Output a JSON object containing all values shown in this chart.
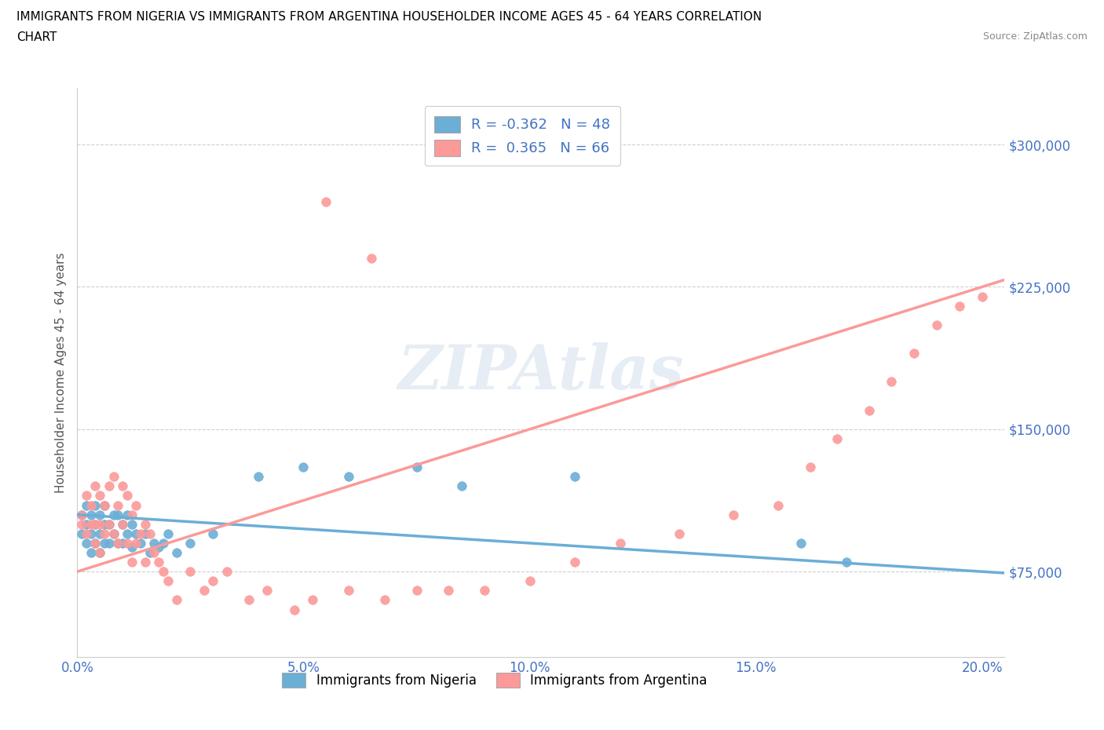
{
  "title_line1": "IMMIGRANTS FROM NIGERIA VS IMMIGRANTS FROM ARGENTINA HOUSEHOLDER INCOME AGES 45 - 64 YEARS CORRELATION",
  "title_line2": "CHART",
  "source": "Source: ZipAtlas.com",
  "ylabel": "Householder Income Ages 45 - 64 years",
  "xlim": [
    0.0,
    0.205
  ],
  "ylim": [
    30000,
    330000
  ],
  "yticks": [
    75000,
    150000,
    225000,
    300000
  ],
  "ytick_labels": [
    "$75,000",
    "$150,000",
    "$225,000",
    "$300,000"
  ],
  "xticks": [
    0.0,
    0.05,
    0.1,
    0.15,
    0.2
  ],
  "xtick_labels": [
    "0.0%",
    "5.0%",
    "10.0%",
    "15.0%",
    "20.0%"
  ],
  "nigeria_color": "#6baed6",
  "argentina_color": "#fb9a99",
  "nigeria_R": -0.362,
  "nigeria_N": 48,
  "argentina_R": 0.365,
  "argentina_N": 66,
  "nigeria_scatter_x": [
    0.001,
    0.001,
    0.002,
    0.002,
    0.002,
    0.003,
    0.003,
    0.003,
    0.004,
    0.004,
    0.004,
    0.005,
    0.005,
    0.005,
    0.006,
    0.006,
    0.006,
    0.007,
    0.007,
    0.008,
    0.008,
    0.009,
    0.009,
    0.01,
    0.01,
    0.011,
    0.011,
    0.012,
    0.012,
    0.013,
    0.014,
    0.015,
    0.016,
    0.017,
    0.018,
    0.019,
    0.02,
    0.022,
    0.025,
    0.03,
    0.04,
    0.05,
    0.06,
    0.075,
    0.085,
    0.11,
    0.16,
    0.17
  ],
  "nigeria_scatter_y": [
    105000,
    95000,
    110000,
    100000,
    90000,
    105000,
    95000,
    85000,
    110000,
    100000,
    90000,
    105000,
    95000,
    85000,
    110000,
    100000,
    90000,
    100000,
    90000,
    105000,
    95000,
    105000,
    90000,
    100000,
    90000,
    105000,
    95000,
    100000,
    88000,
    95000,
    90000,
    95000,
    85000,
    90000,
    88000,
    90000,
    95000,
    85000,
    90000,
    95000,
    125000,
    130000,
    125000,
    130000,
    120000,
    125000,
    90000,
    80000
  ],
  "argentina_scatter_x": [
    0.001,
    0.001,
    0.002,
    0.002,
    0.003,
    0.003,
    0.004,
    0.004,
    0.004,
    0.005,
    0.005,
    0.005,
    0.006,
    0.006,
    0.007,
    0.007,
    0.008,
    0.008,
    0.009,
    0.009,
    0.01,
    0.01,
    0.011,
    0.011,
    0.012,
    0.012,
    0.013,
    0.013,
    0.014,
    0.015,
    0.015,
    0.016,
    0.017,
    0.018,
    0.019,
    0.02,
    0.022,
    0.025,
    0.028,
    0.03,
    0.033,
    0.038,
    0.042,
    0.048,
    0.052,
    0.06,
    0.068,
    0.075,
    0.082,
    0.09,
    0.1,
    0.11,
    0.12,
    0.133,
    0.145,
    0.155,
    0.162,
    0.168,
    0.175,
    0.18,
    0.185,
    0.19,
    0.195,
    0.2,
    0.055,
    0.065
  ],
  "argentina_scatter_y": [
    105000,
    100000,
    115000,
    95000,
    110000,
    100000,
    120000,
    100000,
    90000,
    115000,
    100000,
    85000,
    110000,
    95000,
    120000,
    100000,
    125000,
    95000,
    110000,
    90000,
    120000,
    100000,
    115000,
    90000,
    105000,
    80000,
    110000,
    90000,
    95000,
    100000,
    80000,
    95000,
    85000,
    80000,
    75000,
    70000,
    60000,
    75000,
    65000,
    70000,
    75000,
    60000,
    65000,
    55000,
    60000,
    65000,
    60000,
    65000,
    65000,
    65000,
    70000,
    80000,
    90000,
    95000,
    105000,
    110000,
    130000,
    145000,
    160000,
    175000,
    190000,
    205000,
    215000,
    220000,
    270000,
    240000
  ],
  "watermark": "ZIPAtlas",
  "legend_text_color": "#4472c4",
  "grid_color": "#d0d0d0",
  "axis_color": "#4472c4"
}
